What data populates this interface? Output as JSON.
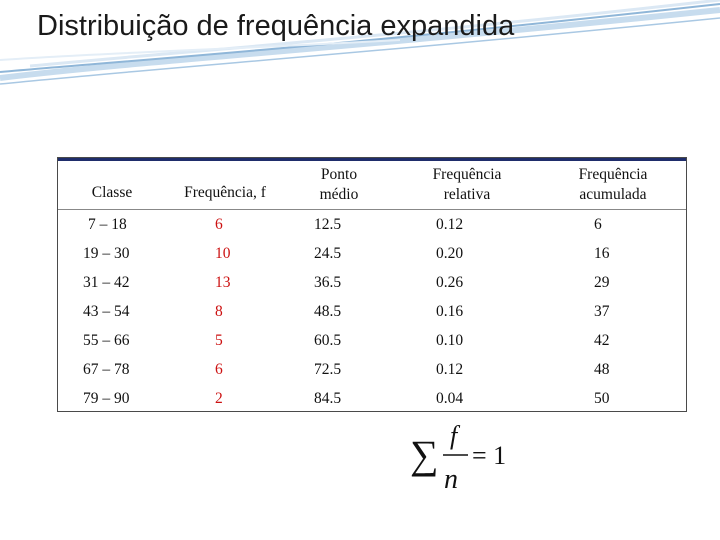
{
  "title": "Distribuição de  frequência expandida",
  "table": {
    "headers": {
      "classe": "Classe",
      "freq": "Frequência, f",
      "ponto_1": "Ponto",
      "ponto_2": "médio",
      "rel_1": "Frequência",
      "rel_2": "relativa",
      "acum_1": "Frequência",
      "acum_2": "acumulada"
    },
    "rows": [
      [
        "7 – 18",
        "6",
        "12.5",
        "0.12",
        "6"
      ],
      [
        "19 – 30",
        "10",
        "24.5",
        "0.20",
        "16"
      ],
      [
        "31 – 42",
        "13",
        "36.5",
        "0.26",
        "29"
      ],
      [
        "43 – 54",
        "8",
        "48.5",
        "0.16",
        "37"
      ],
      [
        "55 – 66",
        "5",
        "60.5",
        "0.10",
        "42"
      ],
      [
        "67 – 78",
        "6",
        "72.5",
        "0.12",
        "48"
      ],
      [
        "79 – 90",
        "2",
        "84.5",
        "0.04",
        "50"
      ]
    ]
  },
  "formula": {
    "sigma": "∑",
    "numerator": "f",
    "denominator": "n",
    "equals": "= 1"
  },
  "colors": {
    "frequency_text": "#cc1111",
    "header_border": "#1f2d6b",
    "swoosh": "#8fb6d8"
  }
}
